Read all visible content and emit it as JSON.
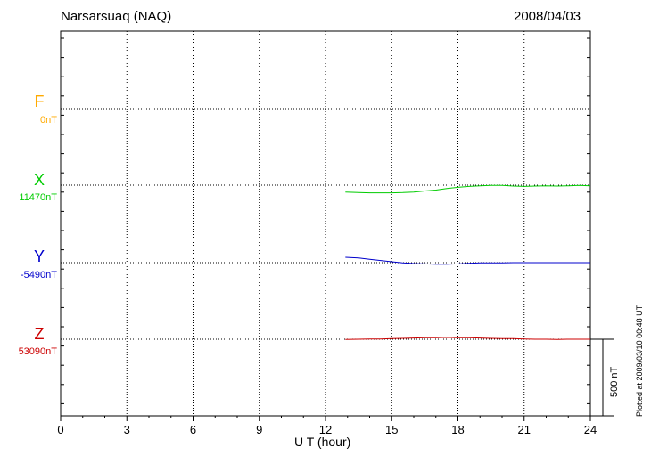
{
  "header": {
    "station": "Narsarsuaq (NAQ)",
    "date": "2008/04/03"
  },
  "footer": {
    "plotted": "Plotted at 2009/03/10 00:48 UT"
  },
  "scale_bar": {
    "label": "500 nT",
    "value_nT": 500
  },
  "components": [
    {
      "name": "F",
      "baseline": "0nT",
      "color": "#ffaa00"
    },
    {
      "name": "X",
      "baseline": "11470nT",
      "color": "#00cc00"
    },
    {
      "name": "Y",
      "baseline": "-5490nT",
      "color": "#0000cc"
    },
    {
      "name": "Z",
      "baseline": "53090nT",
      "color": "#cc0000"
    }
  ],
  "chart_data": {
    "type": "line",
    "title": "Narsarsuaq (NAQ)",
    "xlabel": "U T (hour)",
    "ylabel": "",
    "xlim": [
      0,
      24
    ],
    "xticks": [
      "0",
      "3",
      "6",
      "9",
      "12",
      "15",
      "18",
      "21",
      "24"
    ],
    "grid": true,
    "series": [
      {
        "name": "F",
        "baseline": "0nT",
        "color": "#ffaa00",
        "x": [],
        "y": []
      },
      {
        "name": "X",
        "baseline": "11470nT",
        "color": "#00cc00",
        "x": [
          12.9,
          13.5,
          14,
          14.5,
          15,
          15.5,
          16,
          16.5,
          17,
          17.5,
          18,
          18.5,
          19,
          19.5,
          20,
          20.5,
          21,
          21.5,
          22,
          22.5,
          23,
          23.5,
          24
        ],
        "y": [
          -45,
          -48,
          -50,
          -50,
          -50,
          -48,
          -45,
          -38,
          -32,
          -22,
          -14,
          -8,
          -4,
          -2,
          -2,
          -6,
          -8,
          -6,
          -4,
          -6,
          -4,
          -2,
          -4
        ]
      },
      {
        "name": "Y",
        "baseline": "-5490nT",
        "color": "#0000cc",
        "x": [
          12.9,
          13.5,
          14,
          14.5,
          15,
          15.5,
          16,
          16.5,
          17,
          17.5,
          18,
          18.5,
          19,
          19.5,
          20,
          20.5,
          21,
          21.5,
          22,
          22.5,
          23,
          23.5,
          24
        ],
        "y": [
          35,
          30,
          22,
          14,
          6,
          -2,
          -6,
          -8,
          -10,
          -10,
          -8,
          -4,
          -2,
          -2,
          -2,
          0,
          0,
          0,
          0,
          0,
          0,
          0,
          0
        ]
      },
      {
        "name": "Z",
        "baseline": "53090nT",
        "color": "#cc0000",
        "x": [
          12.9,
          13.5,
          14,
          14.5,
          15,
          15.5,
          16,
          16.5,
          17,
          17.5,
          18,
          18.5,
          19,
          19.5,
          20,
          20.5,
          21,
          21.5,
          22,
          22.5,
          23,
          23.5,
          24
        ],
        "y": [
          -2,
          0,
          2,
          2,
          4,
          6,
          8,
          10,
          10,
          12,
          10,
          10,
          8,
          6,
          4,
          4,
          2,
          0,
          0,
          -2,
          0,
          0,
          0
        ]
      }
    ]
  }
}
